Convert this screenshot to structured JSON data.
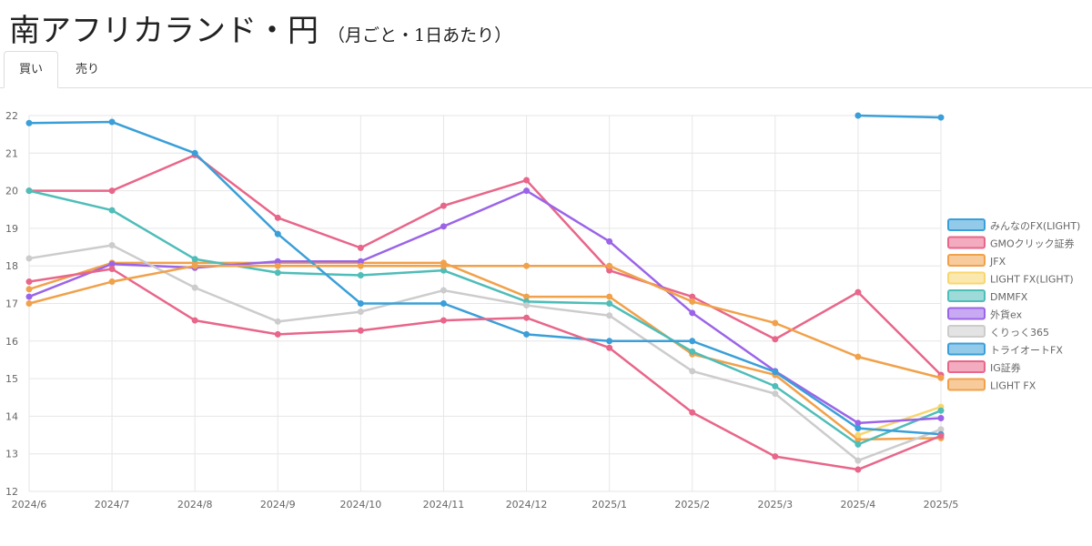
{
  "title": {
    "main": "南アフリカランド・円",
    "sub": "（月ごと・1日あたり）"
  },
  "tabs": [
    {
      "label": "買い",
      "active": true
    },
    {
      "label": "売り",
      "active": false
    }
  ],
  "chart_data": {
    "type": "line",
    "x": [
      "2024/6",
      "2024/7",
      "2024/8",
      "2024/9",
      "2024/10",
      "2024/11",
      "2024/12",
      "2025/1",
      "2025/2",
      "2025/3",
      "2025/4",
      "2025/5"
    ],
    "ylim": [
      12,
      22
    ],
    "yticks": [
      12,
      13,
      14,
      15,
      16,
      17,
      18,
      19,
      20,
      21,
      22
    ],
    "grid": true,
    "legend_position": "right",
    "series": [
      {
        "name": "みんなのFX(LIGHT)",
        "color": "#3a9fd8",
        "values": [
          null,
          null,
          null,
          null,
          null,
          null,
          null,
          null,
          null,
          null,
          22.0,
          21.95
        ]
      },
      {
        "name": "GMOクリック証券",
        "color": "#e8668a",
        "values": [
          20.0,
          20.0,
          20.95,
          19.28,
          18.48,
          19.6,
          20.28,
          17.88,
          17.18,
          16.05,
          17.3,
          15.1
        ]
      },
      {
        "name": "JFX",
        "color": "#f1a14a",
        "values": [
          17.38,
          18.08,
          18.08,
          18.08,
          18.08,
          18.08,
          17.18,
          17.18,
          15.65,
          15.1,
          13.38,
          13.42
        ]
      },
      {
        "name": "LIGHT FX(LIGHT)",
        "color": "#f8d66e",
        "values": [
          null,
          null,
          null,
          null,
          null,
          null,
          null,
          null,
          null,
          null,
          13.5,
          14.25
        ]
      },
      {
        "name": "DMMFX",
        "color": "#4fbdb8",
        "values": [
          20.0,
          19.48,
          18.18,
          17.82,
          17.75,
          17.88,
          17.05,
          17.0,
          15.72,
          14.8,
          13.25,
          14.15
        ]
      },
      {
        "name": "外貨ex",
        "color": "#9b64e8",
        "values": [
          17.18,
          18.05,
          17.95,
          18.12,
          18.12,
          19.05,
          20.0,
          18.65,
          16.75,
          15.2,
          13.82,
          13.95
        ]
      },
      {
        "name": "くりっく365",
        "color": "#cccccc",
        "values": [
          18.2,
          18.55,
          17.42,
          16.52,
          16.78,
          17.35,
          16.95,
          16.68,
          15.2,
          14.6,
          12.82,
          13.65
        ]
      },
      {
        "name": "トライオートFX",
        "color": "#3a9fd8",
        "values": [
          21.8,
          21.83,
          21.0,
          18.85,
          17.0,
          17.0,
          16.18,
          16.0,
          16.0,
          15.18,
          13.68,
          13.52
        ]
      },
      {
        "name": "IG証券",
        "color": "#e8668a",
        "values": [
          17.58,
          17.92,
          16.55,
          16.18,
          16.28,
          16.55,
          16.62,
          15.82,
          14.1,
          12.93,
          12.58,
          13.48
        ]
      },
      {
        "name": "LIGHT FX",
        "color": "#f1a14a",
        "values": [
          17.0,
          17.58,
          18.0,
          18.0,
          18.0,
          18.0,
          18.0,
          18.0,
          17.05,
          16.48,
          15.58,
          15.02
        ]
      }
    ]
  }
}
